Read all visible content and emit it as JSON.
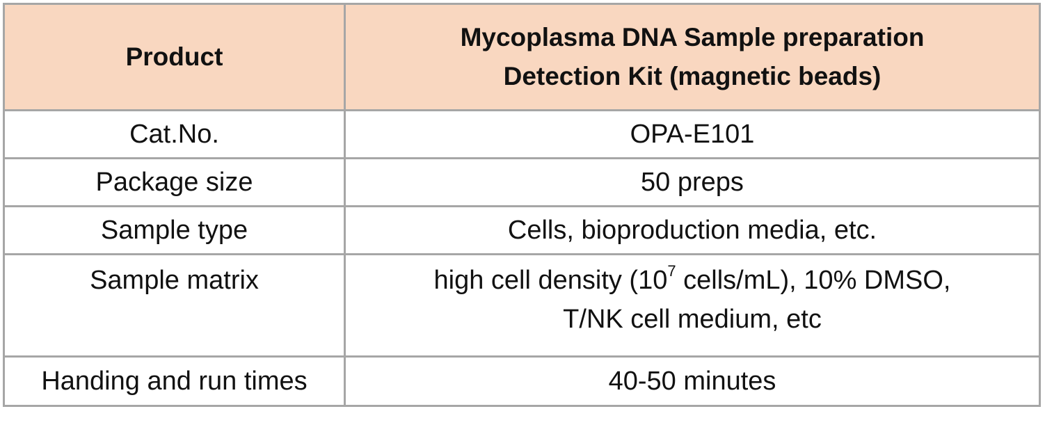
{
  "header": {
    "label": "Product",
    "value_line1": "Mycoplasma DNA Sample preparation",
    "value_line2": "Detection Kit (magnetic beads)"
  },
  "rows": [
    {
      "label": "Cat.No.",
      "value": "OPA-E101"
    },
    {
      "label": "Package size",
      "value": "50 preps"
    },
    {
      "label": "Sample type",
      "value": "Cells, bioproduction media, etc."
    },
    {
      "label": "Sample matrix",
      "value_pre": "high cell density (10",
      "value_sup": "7",
      "value_post": " cells/mL), 10% DMSO,",
      "value_line2": "T/NK cell medium, etc"
    },
    {
      "label": "Handing and run times",
      "value": "40-50 minutes"
    }
  ],
  "colors": {
    "header_bg": "#f9d7c0",
    "border": "#a6a6a6",
    "text": "#111111"
  }
}
